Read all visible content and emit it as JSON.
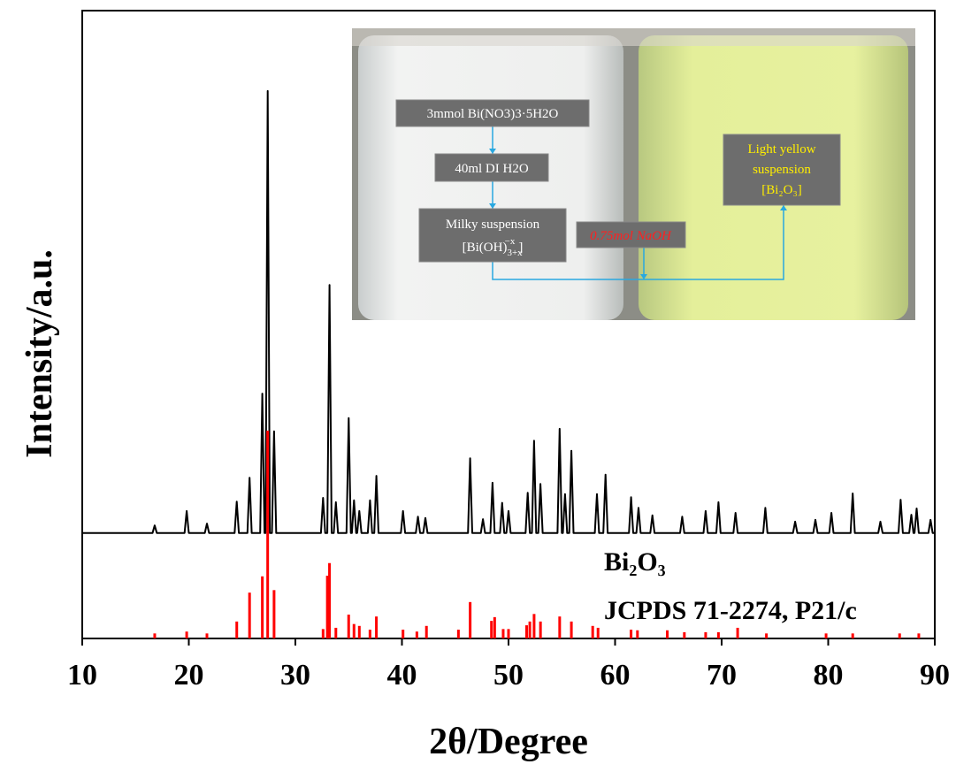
{
  "chart_data": {
    "type": "line",
    "xlabel": "2θ/Degree",
    "ylabel": "Intensity/a.u.",
    "xlim": [
      10,
      90
    ],
    "xticks": [
      10,
      20,
      30,
      40,
      50,
      60,
      70,
      80,
      90
    ],
    "ylim": [
      0,
      100
    ],
    "annotations": [
      "Bi₂O₃",
      "JCPDS 71-2274, P21/c"
    ],
    "series": [
      {
        "style": "line",
        "color": "#000000",
        "x": [
          10,
          16.6,
          16.8,
          17.0,
          19.6,
          19.8,
          20.0,
          21.5,
          21.7,
          21.9,
          24.3,
          24.5,
          24.7,
          25.5,
          25.7,
          25.9,
          26.7,
          26.9,
          27.1,
          27.2,
          27.4,
          27.6,
          27.8,
          28.0,
          28.2,
          32.4,
          32.6,
          32.8,
          33.0,
          33.2,
          33.4,
          33.6,
          33.8,
          34.0,
          34.8,
          35.0,
          35.2,
          35.3,
          35.5,
          35.7,
          35.8,
          36.0,
          36.2,
          36.8,
          37.0,
          37.2,
          37.4,
          37.6,
          37.8,
          39.9,
          40.1,
          40.3,
          41.3,
          41.5,
          41.7,
          42.0,
          42.2,
          42.4,
          46.2,
          46.4,
          46.6,
          47.4,
          47.6,
          47.8,
          48.3,
          48.5,
          48.7,
          49.2,
          49.4,
          49.6,
          49.8,
          50.0,
          50.2,
          51.6,
          51.8,
          52.0,
          52.2,
          52.4,
          52.6,
          52.8,
          53.0,
          53.2,
          54.6,
          54.8,
          55.0,
          55.1,
          55.3,
          55.5,
          55.7,
          55.9,
          56.1,
          58.1,
          58.3,
          58.5,
          58.9,
          59.1,
          59.3,
          61.3,
          61.5,
          61.7,
          62.0,
          62.2,
          62.4,
          63.3,
          63.5,
          63.7,
          66.1,
          66.3,
          66.5,
          68.3,
          68.5,
          68.7,
          69.5,
          69.7,
          69.9,
          71.1,
          71.3,
          71.5,
          73.9,
          74.1,
          74.3,
          76.7,
          76.9,
          77.1,
          78.6,
          78.8,
          79.0,
          80.1,
          80.3,
          80.5,
          82.1,
          82.3,
          82.5,
          84.7,
          84.9,
          85.1,
          86.6,
          86.8,
          87.0,
          87.6,
          87.8,
          88.0,
          88.1,
          88.3,
          88.5,
          89.4,
          89.6,
          89.8,
          90
        ],
        "values": [
          16.8,
          16.8,
          18.0,
          16.8,
          16.8,
          20.3,
          16.8,
          16.8,
          18.3,
          16.8,
          16.8,
          21.8,
          16.8,
          16.8,
          25.6,
          16.8,
          16.8,
          39.0,
          16.8,
          16.8,
          87.2,
          16.8,
          16.8,
          33.0,
          16.8,
          16.8,
          22.4,
          16.8,
          16.8,
          56.3,
          16.8,
          16.8,
          21.7,
          16.8,
          16.8,
          35.1,
          16.8,
          16.8,
          22.0,
          16.8,
          16.8,
          20.3,
          16.8,
          16.8,
          22.0,
          16.8,
          16.8,
          25.9,
          16.8,
          16.8,
          20.3,
          16.8,
          16.8,
          19.4,
          16.8,
          16.8,
          19.2,
          16.8,
          16.8,
          28.7,
          16.8,
          16.8,
          19.0,
          16.8,
          16.8,
          24.8,
          16.8,
          16.8,
          21.6,
          16.8,
          16.8,
          20.3,
          16.8,
          16.8,
          23.2,
          16.8,
          16.8,
          31.5,
          16.8,
          16.8,
          24.6,
          16.8,
          16.8,
          33.4,
          16.8,
          16.8,
          23.0,
          16.8,
          16.8,
          29.9,
          16.8,
          16.8,
          23.0,
          16.8,
          16.8,
          26.1,
          16.8,
          16.8,
          22.5,
          16.8,
          16.8,
          20.8,
          16.8,
          16.8,
          19.6,
          16.8,
          16.8,
          19.4,
          16.8,
          16.8,
          20.3,
          16.8,
          16.8,
          21.7,
          16.8,
          16.8,
          20.0,
          16.8,
          16.8,
          20.8,
          16.8,
          16.8,
          18.6,
          16.8,
          16.8,
          18.9,
          16.8,
          16.8,
          20.0,
          16.8,
          16.8,
          23.1,
          16.8,
          16.8,
          18.6,
          16.8,
          16.8,
          22.1,
          16.8,
          16.8,
          19.7,
          16.8,
          16.8,
          20.7,
          16.8,
          16.8,
          18.9,
          16.8,
          16.8
        ]
      },
      {
        "style": "stick",
        "color": "#ff0000",
        "x": [
          16.8,
          19.8,
          21.7,
          24.5,
          25.7,
          26.9,
          27.4,
          28.0,
          32.6,
          33.0,
          33.2,
          33.8,
          35.0,
          35.5,
          36.0,
          37.0,
          37.6,
          40.1,
          41.4,
          42.3,
          45.3,
          46.4,
          48.4,
          48.7,
          49.5,
          50.0,
          51.7,
          52.0,
          52.4,
          53.0,
          54.8,
          55.9,
          57.9,
          58.4,
          61.5,
          62.1,
          64.9,
          66.5,
          68.5,
          69.7,
          71.5,
          74.2,
          79.8,
          82.3,
          86.7,
          88.5
        ],
        "values": [
          0.8,
          1.1,
          0.8,
          2.7,
          7.3,
          9.9,
          33.1,
          7.7,
          1.5,
          10.0,
          12.0,
          1.7,
          3.8,
          2.3,
          2.0,
          1.4,
          3.5,
          1.4,
          1.1,
          2.0,
          1.4,
          5.8,
          2.8,
          3.4,
          1.5,
          1.5,
          2.1,
          2.7,
          3.9,
          2.7,
          3.5,
          2.7,
          2.0,
          1.7,
          1.4,
          1.3,
          1.3,
          1.0,
          1.0,
          1.0,
          1.7,
          0.8,
          0.8,
          0.8,
          0.8,
          0.8
        ]
      }
    ]
  },
  "inset": {
    "step1": "3mmol Bi(NO3)3·5H2O",
    "step2": "40ml DI H2O",
    "step3": {
      "line1": "Milky suspension",
      "formula": [
        "[Bi(OH)",
        "3+x",
        "−x",
        "]"
      ]
    },
    "reagent": "0.75mol NaOH",
    "result": {
      "line1": "Light yellow",
      "line2": "suspension",
      "line3": "[Bi₂O₃]"
    }
  }
}
